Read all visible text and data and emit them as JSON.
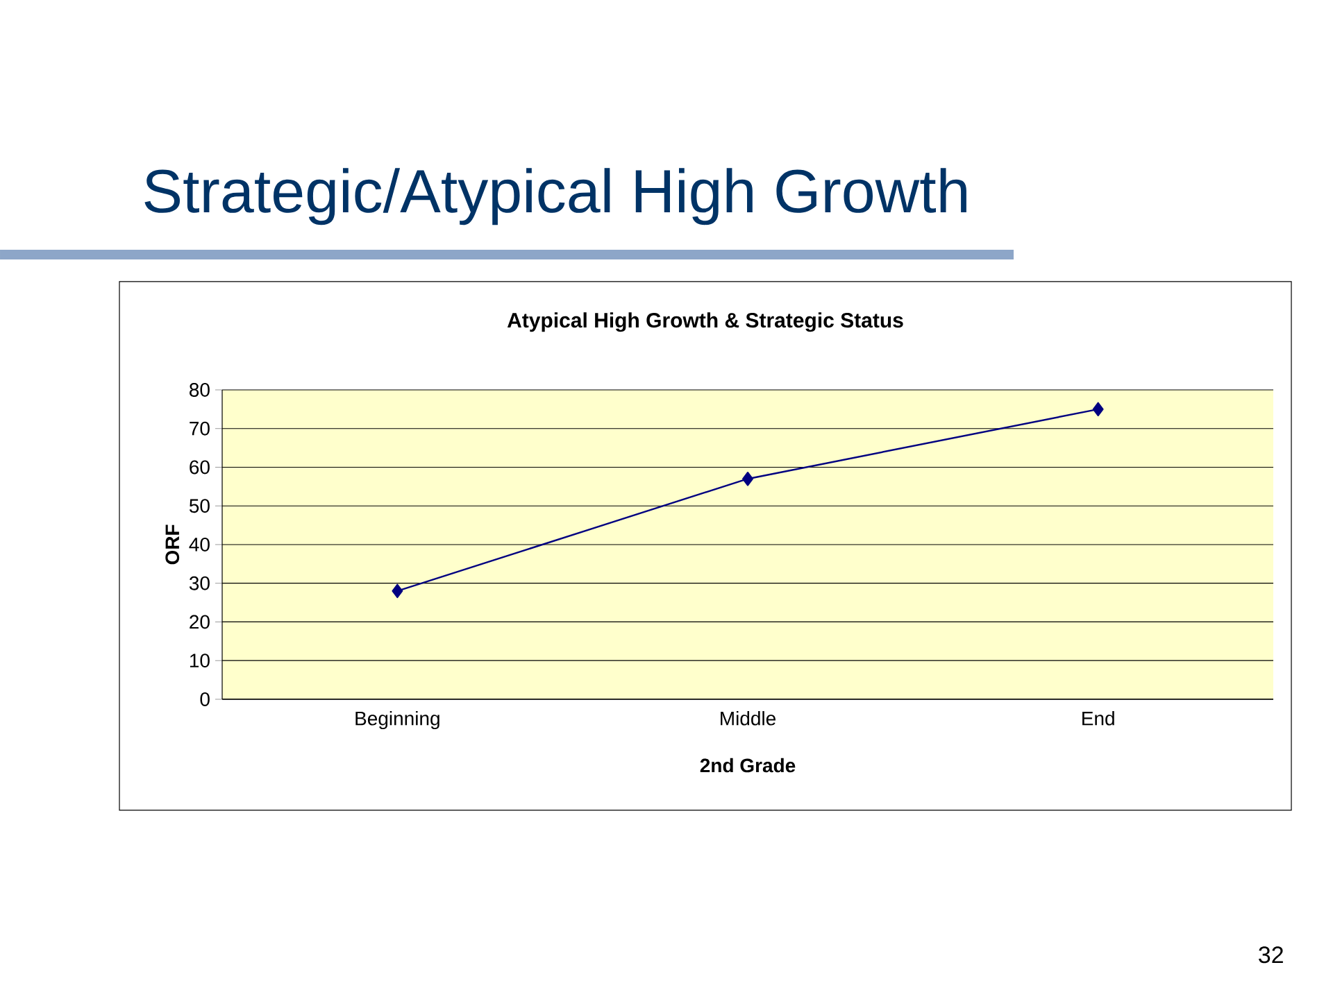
{
  "chart_data": {
    "type": "line",
    "title": "Strategic/Atypical High Growth",
    "subtitle": "Atypical High Growth & Strategic Status",
    "xlabel": "2nd Grade",
    "ylabel": "ORF",
    "categories": [
      "Beginning",
      "Middle",
      "End"
    ],
    "series": [
      {
        "color": "#000080",
        "values": [
          28,
          57,
          75
        ]
      }
    ],
    "ylim": [
      0,
      80
    ],
    "yticks": [
      0,
      10,
      20,
      30,
      40,
      50,
      60,
      70,
      80
    ],
    "grid": "y",
    "marker": "diamond",
    "line_style": "solid",
    "annotations": [
      "32"
    ]
  }
}
